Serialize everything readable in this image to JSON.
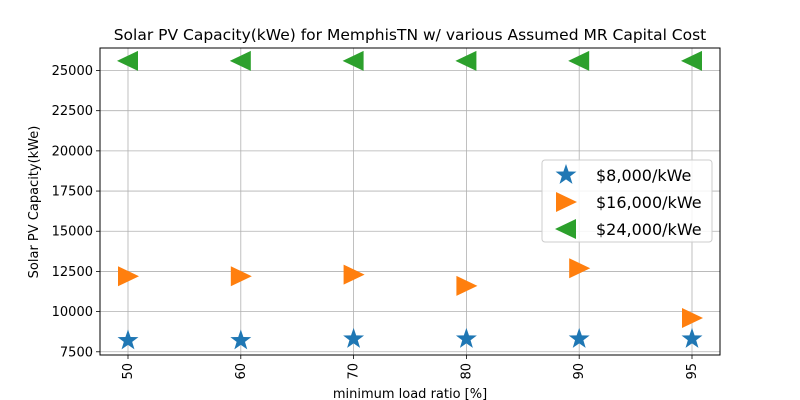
{
  "chart_data": {
    "type": "scatter",
    "title": "Solar PV Capacity(kWe) for MemphisTN w/ various Assumed MR Capital Cost",
    "xlabel": "minimum load ratio [%]",
    "ylabel": "Solar PV Capacity(kWe)",
    "categories": [
      "50",
      "60",
      "70",
      "80",
      "90",
      "95"
    ],
    "ylim": [
      7300,
      26400
    ],
    "yticks": [
      7500,
      10000,
      12500,
      15000,
      17500,
      20000,
      22500,
      25000
    ],
    "ytick_labels": [
      "7500",
      "10000",
      "12500",
      "15000",
      "17500",
      "20000",
      "22500",
      "25000"
    ],
    "grid": true,
    "legend_position": "center-right",
    "series": [
      {
        "name": "$8,000/kWe",
        "marker": "star",
        "color": "#1f77b4",
        "values": [
          8200,
          8200,
          8300,
          8300,
          8300,
          8300
        ]
      },
      {
        "name": "$16,000/kWe",
        "marker": "triangle-right",
        "color": "#ff7f0e",
        "values": [
          12200,
          12200,
          12300,
          11600,
          12700,
          9600
        ]
      },
      {
        "name": "$24,000/kWe",
        "marker": "triangle-left",
        "color": "#2ca02c",
        "values": [
          25600,
          25600,
          25600,
          25600,
          25600,
          25600
        ]
      }
    ]
  }
}
